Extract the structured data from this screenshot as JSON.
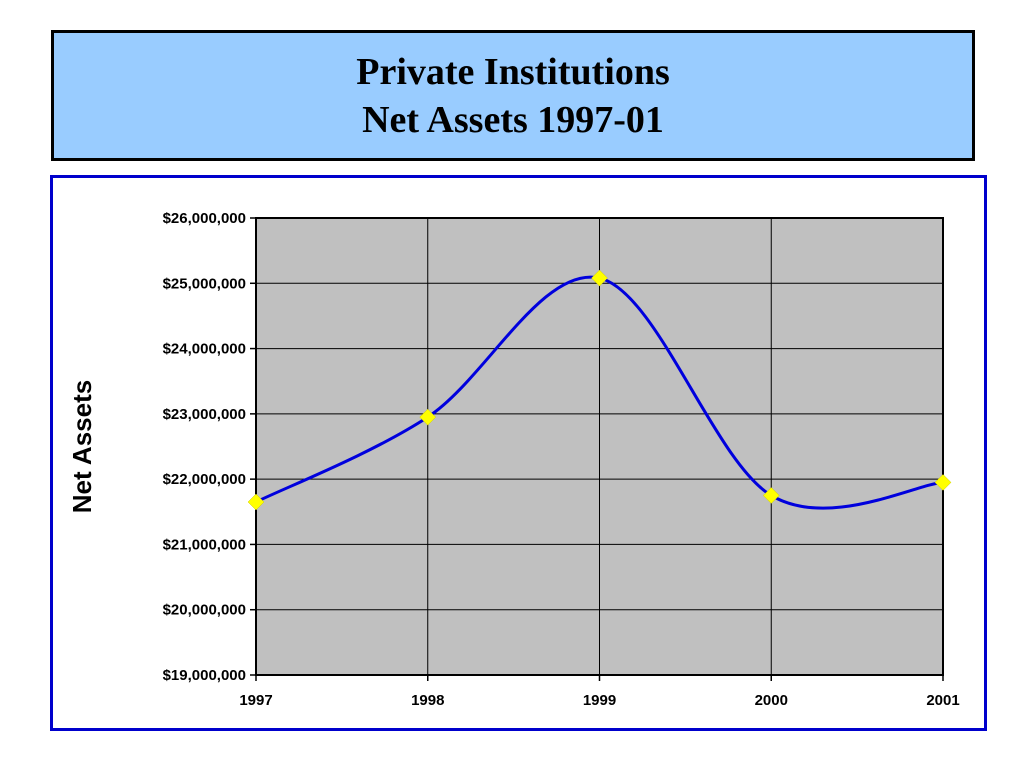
{
  "header": {
    "title_line1": "Private Institutions",
    "title_line2": "Net Assets 1997-01"
  },
  "colors": {
    "title_background": "#99ccff",
    "chart_border": "#0000cc",
    "plot_background": "#c0c0c0",
    "line": "#0000dd",
    "marker": "#ffff00"
  },
  "chart_data": {
    "type": "line",
    "title": "Private Institutions Net Assets 1997-01",
    "xlabel": "",
    "ylabel": "Net Assets",
    "smoothed": true,
    "grid": true,
    "legend": "none",
    "x": [
      "1997",
      "1998",
      "1999",
      "2000",
      "2001"
    ],
    "y_ticks": [
      19000000,
      20000000,
      21000000,
      22000000,
      23000000,
      24000000,
      25000000,
      26000000
    ],
    "y_tick_labels": [
      "$19,000,000",
      "$20,000,000",
      "$21,000,000",
      "$22,000,000",
      "$23,000,000",
      "$24,000,000",
      "$25,000,000",
      "$26,000,000"
    ],
    "ylim": [
      19000000,
      26000000
    ],
    "series": [
      {
        "values": [
          21650000,
          22950000,
          25080000,
          21750000,
          21950000
        ]
      }
    ]
  }
}
